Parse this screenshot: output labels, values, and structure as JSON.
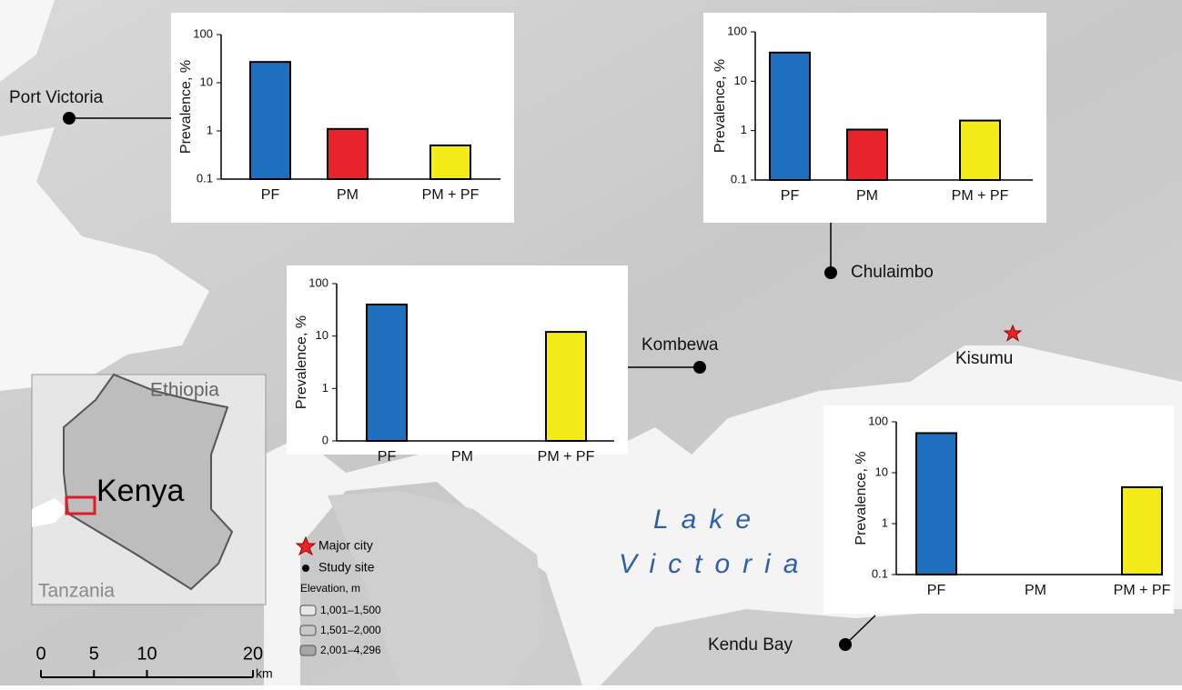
{
  "chart_data": [
    {
      "type": "bar",
      "y_label": "Prevalence, %",
      "categories": [
        "PF",
        "PM",
        "PM + PF"
      ],
      "values": [
        27,
        1.1,
        0.5
      ],
      "colors": [
        "#1f6fbf",
        "#e8242a",
        "#f3ec19"
      ],
      "log_scale": true,
      "ylim": [
        0.1,
        100
      ],
      "yticks": [
        0.1,
        1,
        10,
        100
      ]
    },
    {
      "type": "bar",
      "y_label": "Prevalence, %",
      "categories": [
        "PF",
        "PM",
        "PM + PF"
      ],
      "values": [
        38,
        1.05,
        1.6
      ],
      "colors": [
        "#1f6fbf",
        "#e8242a",
        "#f3ec19"
      ],
      "log_scale": true,
      "ylim": [
        0.1,
        100
      ],
      "yticks": [
        0.1,
        1,
        10,
        100
      ]
    },
    {
      "type": "bar",
      "y_label": "Prevalence, %",
      "categories": [
        "PF",
        "PM",
        "PM + PF"
      ],
      "values": [
        40,
        null,
        12
      ],
      "colors": [
        "#1f6fbf",
        "#e8242a",
        "#f3ec19"
      ],
      "log_scale": true,
      "ylim": [
        0,
        100
      ],
      "yticks": [
        0,
        1,
        10,
        100
      ]
    },
    {
      "type": "bar",
      "y_label": "Prevalence, %",
      "categories": [
        "PF",
        "PM",
        "PM + PF"
      ],
      "values": [
        60,
        null,
        5.2
      ],
      "colors": [
        "#1f6fbf",
        "#e8242a",
        "#f3ec19"
      ],
      "log_scale": true,
      "ylim": [
        0.1,
        100
      ],
      "yticks": [
        0.1,
        1,
        10,
        100
      ]
    }
  ],
  "map": {
    "sites": [
      "Port Victoria",
      "Chulaimbo",
      "Kombewa",
      "Kendu Bay"
    ],
    "city": "Kisumu",
    "lake": [
      "Lake",
      "Victoria"
    ]
  },
  "inset": {
    "countries": [
      "Ethiopia",
      "Kenya",
      "Tanzania"
    ]
  },
  "legend": {
    "city": "Major city",
    "site": "Study site",
    "elevation_title": "Elevation, m",
    "elevation_classes": [
      "1,001–1,500",
      "1,501–2,000",
      "2,001–4,296"
    ]
  },
  "scale": {
    "ticks": [
      0,
      5,
      10,
      20
    ],
    "unit": "km"
  }
}
